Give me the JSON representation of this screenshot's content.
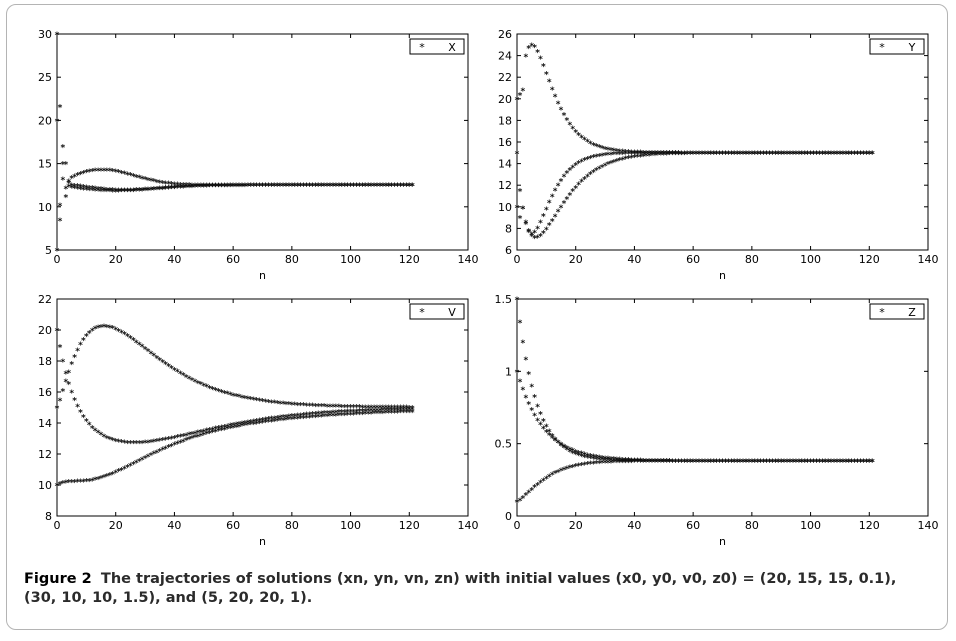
{
  "figure": {
    "label": "Figure 2",
    "caption": "The trajectories of solutions (xn, yn, vn, zn) with initial values (x0, y0, v0, z0) = (20, 15, 15, 0.1), (30, 10, 10, 1.5), and (5, 20, 20, 1)."
  },
  "chart_data": [
    {
      "type": "scatter",
      "marker": "*",
      "xlabel": "n",
      "ylabel": "",
      "xlim": [
        0,
        140
      ],
      "ylim": [
        5,
        30
      ],
      "xticks": [
        0,
        20,
        40,
        60,
        80,
        100,
        120,
        140
      ],
      "yticks": [
        5,
        10,
        15,
        20,
        25,
        30
      ],
      "legend": "X",
      "legend_position": "top-right",
      "series": [
        {
          "x_range": [
            0,
            121
          ],
          "y": [
            20,
            10.2,
            13.2,
            12.2,
            12.8,
            12.5,
            12.6
          ],
          "x_samples": [
            0,
            1,
            2,
            3,
            4,
            5,
            6
          ]
        },
        {
          "x_range": [
            0,
            121
          ],
          "y": [
            30,
            8.5,
            17,
            15,
            13,
            14.2
          ],
          "x_samples": [
            0,
            1,
            2,
            3,
            4,
            15
          ]
        },
        {
          "x_range": [
            0,
            121
          ],
          "y": [
            5,
            21.6,
            15,
            12,
            11.9
          ],
          "x_samples": [
            0,
            1,
            2,
            4,
            20
          ]
        }
      ],
      "steady_state": 12.5
    },
    {
      "type": "scatter",
      "marker": "*",
      "xlabel": "n",
      "ylabel": "",
      "xlim": [
        0,
        140
      ],
      "ylim": [
        6,
        26
      ],
      "xticks": [
        0,
        20,
        40,
        60,
        80,
        100,
        120,
        140
      ],
      "yticks": [
        6,
        8,
        10,
        12,
        14,
        16,
        18,
        20,
        22,
        24,
        26
      ],
      "legend": "Y",
      "legend_position": "top-right",
      "series": [
        {
          "start": 20,
          "peak": 25,
          "peak_n": 5,
          "end": 15
        },
        {
          "start": 15,
          "min": 7.5,
          "min_n": 5,
          "end": 15
        },
        {
          "start": 10,
          "min": 8,
          "min_n": 3,
          "end": 15
        }
      ],
      "steady_state": 15
    },
    {
      "type": "scatter",
      "marker": "*",
      "xlabel": "n",
      "ylabel": "",
      "xlim": [
        0,
        140
      ],
      "ylim": [
        8,
        22
      ],
      "xticks": [
        0,
        20,
        40,
        60,
        80,
        100,
        120,
        140
      ],
      "yticks": [
        8,
        10,
        12,
        14,
        16,
        18,
        20,
        22
      ],
      "legend": "V",
      "legend_position": "top-right",
      "series": [
        {
          "start": 15,
          "peak": 20,
          "peak_n": 12,
          "end": 15
        },
        {
          "start": 20,
          "min": 13,
          "min_n": 18,
          "end": 15
        },
        {
          "start": 10,
          "min": 9,
          "min_n": 11,
          "end": 15
        }
      ],
      "steady_state": 15
    },
    {
      "type": "scatter",
      "marker": "*",
      "xlabel": "n",
      "ylabel": "",
      "xlim": [
        0,
        140
      ],
      "ylim": [
        0,
        1.5
      ],
      "xticks": [
        0,
        20,
        40,
        60,
        80,
        100,
        120,
        140
      ],
      "yticks": [
        0,
        0.5,
        1,
        1.5
      ],
      "ytick_labels": [
        "0",
        "0.5",
        "1",
        "1.5"
      ],
      "legend": "Z",
      "legend_position": "top-right",
      "series": [
        {
          "start": 1.5,
          "end": 0.38
        },
        {
          "start": 1.0,
          "end": 0.38
        },
        {
          "start": 0.1,
          "end": 0.38
        }
      ],
      "steady_state": 0.38
    }
  ]
}
